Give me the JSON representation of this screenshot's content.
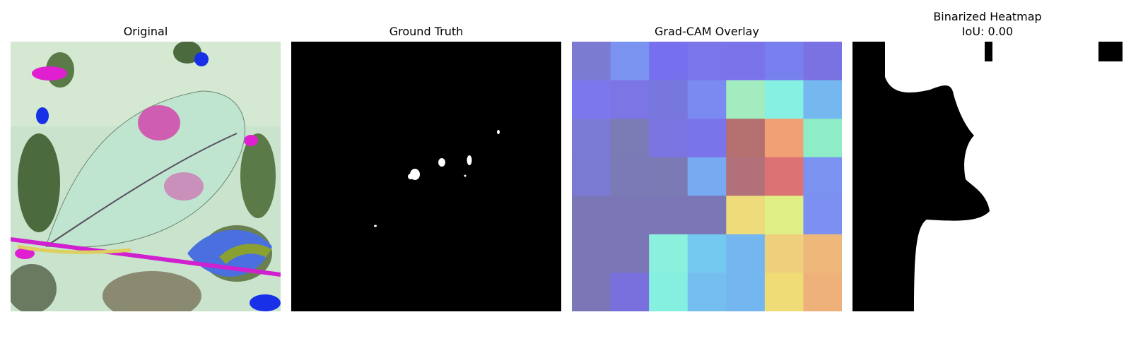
{
  "panels": [
    {
      "title": "Original",
      "image": "leaf-photo-inverted-colors"
    },
    {
      "title": "Ground Truth",
      "image": "binary-mask-small-spots"
    },
    {
      "title": "Grad-CAM Overlay",
      "image": "heatmap-grid-7x7"
    },
    {
      "title": "Binarized Heatmap\nIoU: 0.00",
      "image": "binary-heatmap-mask"
    }
  ],
  "colors": {
    "background": "#ffffff",
    "mask_foreground": "#ffffff",
    "mask_background": "#000000"
  },
  "gradcam_grid": [
    [
      "#7b7bd2",
      "#7b93f0",
      "#7770ee",
      "#7a75e8",
      "#7a73ea",
      "#7880f0",
      "#7a72e2"
    ],
    [
      "#7a78ec",
      "#7b75e6",
      "#7777de",
      "#7b8af0",
      "#a3ecbf",
      "#86f0e3",
      "#75b8ef"
    ],
    [
      "#7b7ad4",
      "#7b7bb6",
      "#7b75e2",
      "#7a74ea",
      "#b4706f",
      "#f19f74",
      "#8eecc7"
    ],
    [
      "#7b7ad2",
      "#7b7ab6",
      "#7b7ab5",
      "#77aaf0",
      "#b2707a",
      "#dc7274",
      "#7b92f0"
    ],
    [
      "#7b76b6",
      "#7b76b6",
      "#7b76b6",
      "#7b76b6",
      "#eedb79",
      "#dfef86",
      "#7b90f0"
    ],
    [
      "#7b76b6",
      "#7b76b6",
      "#8bf0dc",
      "#74c9f1",
      "#74b6f0",
      "#eed07c",
      "#eeb87b"
    ],
    [
      "#7b76b6",
      "#7a70dd",
      "#86f0e0",
      "#75bff0",
      "#74b6f0",
      "#efdc76",
      "#eeb17a"
    ]
  ]
}
